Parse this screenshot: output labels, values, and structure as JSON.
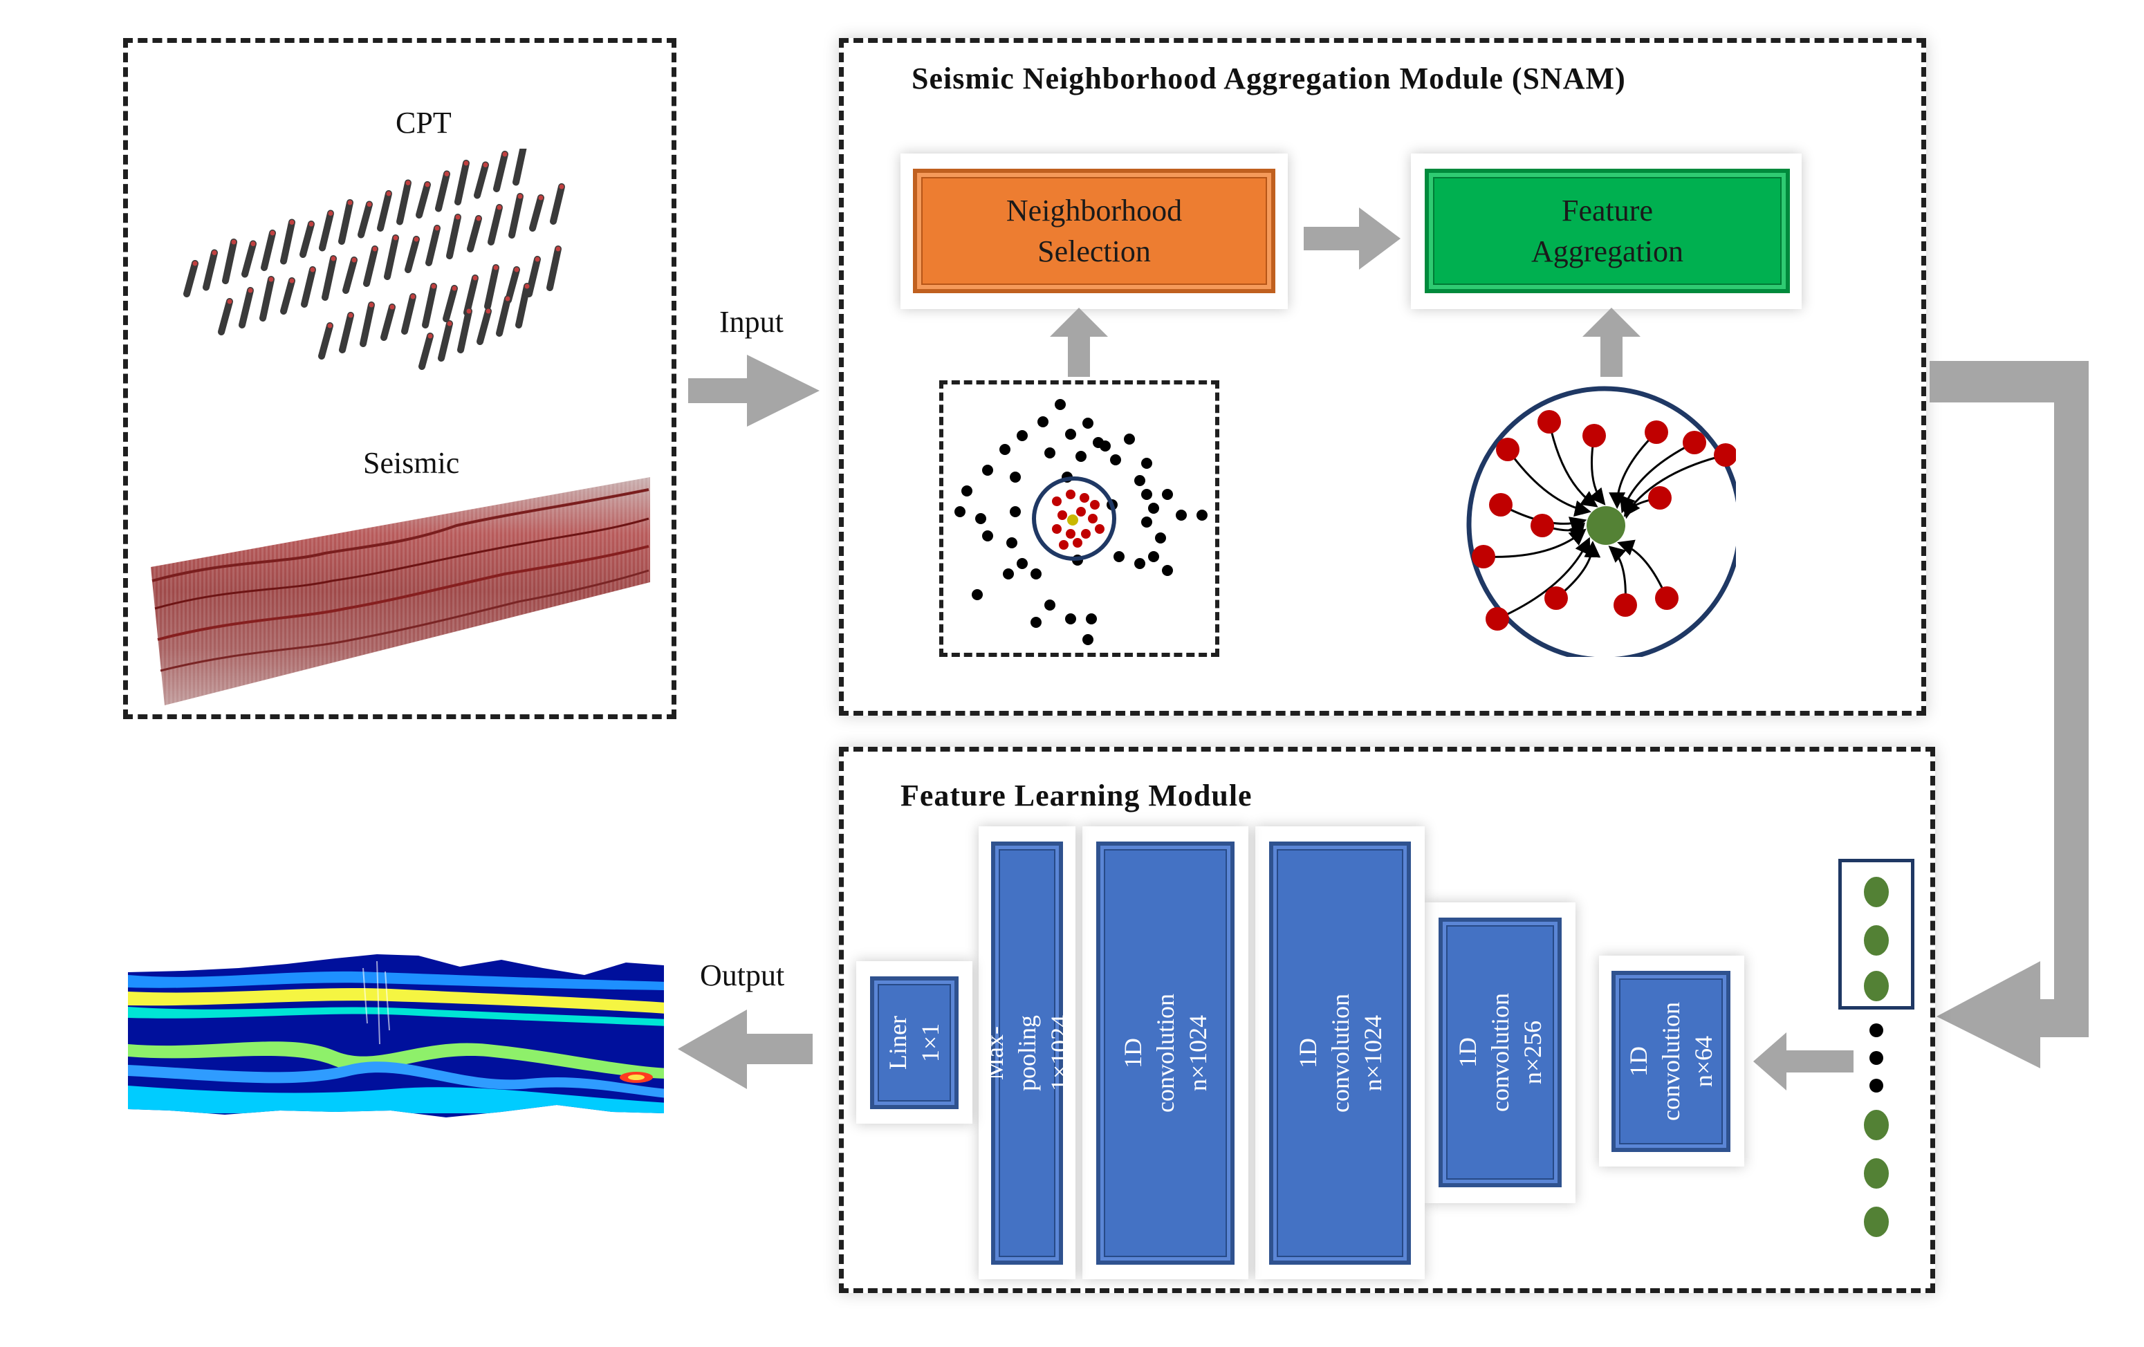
{
  "input_panel": {
    "cpt_label": "CPT",
    "seismic_label": "Seismic"
  },
  "arrows": {
    "input_label": "Input",
    "output_label": "Output"
  },
  "snam": {
    "title": "Seismic Neighborhood Aggregation Module (SNAM)",
    "neighborhood_selection": "Neighborhood\nSelection",
    "feature_aggregation": "Feature\nAggregation"
  },
  "feature_learning": {
    "title": "Feature Learning Module",
    "blocks": [
      {
        "id": "liner",
        "text": "Liner\n1×1"
      },
      {
        "id": "maxpool",
        "text": "Max-pooling\n1×1024"
      },
      {
        "id": "conv1024a",
        "text": "1D convolution\nn×1024"
      },
      {
        "id": "conv1024b",
        "text": "1D convolution\nn×1024"
      },
      {
        "id": "conv256",
        "text": "1D convolution\nn×256"
      },
      {
        "id": "conv64",
        "text": "1D\nconvolution\nn×64"
      }
    ]
  },
  "colors": {
    "block_blue": "#4472c4",
    "orange": "#ed7d31",
    "green": "#00b050",
    "arrow_gray": "#a6a6a6",
    "point_red": "#c00000",
    "center_green": "#548235",
    "feature_vector_green": "#538135"
  }
}
